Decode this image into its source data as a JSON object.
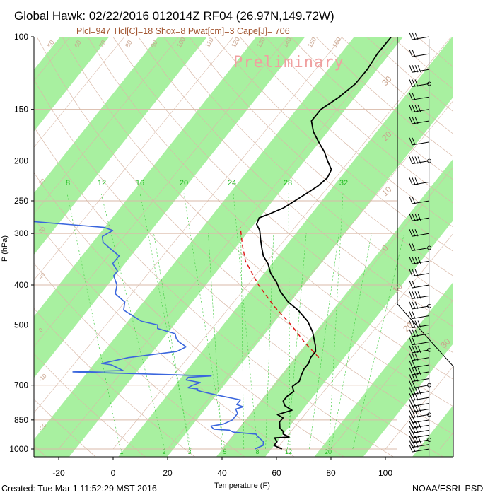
{
  "header": {
    "title": "Global Hawk: 02/22/2016 012014Z RF04 (26.97N,149.72W)",
    "subtitle": "Plcl=947 Tlcl[C]=18 Shox=8 Pwat[cm]=3 Cape[J]= 706"
  },
  "footer": {
    "created": "Created: Tue Mar  1 11:52:29 MST 2016",
    "credit": "NOAA/ESRL PSD"
  },
  "watermark": "Preliminary",
  "colors": {
    "band": "#a8f0a0",
    "temperature": "#000000",
    "dewpoint": "#3a66dd",
    "parcel": "#dd1111",
    "isotherm": "#d9b9a8",
    "dry_adiabat": "#d9b9a8",
    "mixing_ratio": "#44cc44",
    "wind": "#000000",
    "watermark": "#f0a0a0"
  },
  "chart_data": {
    "type": "skew-t",
    "xlabel": "Temperature (F)",
    "ylabel": "P (hPa)",
    "x_ticks": [
      -20,
      0,
      20,
      40,
      60,
      80,
      100
    ],
    "y_ticks": [
      100,
      150,
      200,
      250,
      300,
      400,
      500,
      700,
      850,
      1000
    ],
    "xlim_F": [
      -28,
      112
    ],
    "ylim_hPa": [
      1000,
      100
    ],
    "isotherm_labels_F": [
      "20",
      "10",
      "0",
      "-10",
      "-20",
      "-30"
    ],
    "dry_adiabat_labels": [
      "50",
      "60",
      "70",
      "80",
      "90",
      "100",
      "110",
      "120",
      "130",
      "140",
      "150",
      "160"
    ],
    "mixing_ratio_labels_top": [
      "8",
      "12",
      "16",
      "20",
      "24",
      "28",
      "32"
    ],
    "mixing_ratio_labels_bottom": [
      "1",
      "2",
      "3",
      "5",
      "8",
      "12",
      "20"
    ],
    "skewt_temperature_labels": [
      "30",
      "20",
      "10",
      "0",
      "10",
      "20",
      "30"
    ],
    "left_isotherm_labels": [
      "20",
      "30",
      "40",
      "0",
      "-10",
      "-20"
    ],
    "series": [
      {
        "name": "temperature",
        "points_F_hPa": [
          [
            62,
            1000
          ],
          [
            58,
            980
          ],
          [
            58,
            960
          ],
          [
            56,
            940
          ],
          [
            61,
            935
          ],
          [
            58,
            920
          ],
          [
            57,
            905
          ],
          [
            55,
            890
          ],
          [
            53,
            860
          ],
          [
            53,
            840
          ],
          [
            50,
            825
          ],
          [
            54,
            805
          ],
          [
            50,
            785
          ],
          [
            48,
            765
          ],
          [
            48,
            745
          ],
          [
            49,
            725
          ],
          [
            47,
            705
          ],
          [
            48,
            685
          ],
          [
            47,
            665
          ],
          [
            46,
            640
          ],
          [
            46,
            620
          ],
          [
            45,
            600
          ],
          [
            45,
            580
          ],
          [
            43,
            560
          ],
          [
            38,
            520
          ],
          [
            33,
            490
          ],
          [
            26,
            460
          ],
          [
            20,
            440
          ],
          [
            14,
            415
          ],
          [
            10,
            395
          ],
          [
            5,
            375
          ],
          [
            1,
            355
          ],
          [
            -3,
            340
          ],
          [
            -6,
            325
          ],
          [
            -9,
            310
          ],
          [
            -12,
            295
          ],
          [
            -15,
            285
          ],
          [
            -16,
            275
          ],
          [
            -13,
            268
          ],
          [
            -10,
            260
          ],
          [
            -8,
            250
          ],
          [
            -6,
            240
          ],
          [
            -4,
            230
          ],
          [
            -3,
            220
          ],
          [
            -4,
            210
          ],
          [
            -8,
            200
          ],
          [
            -12,
            190
          ],
          [
            -17,
            180
          ],
          [
            -22,
            170
          ],
          [
            -26,
            160
          ],
          [
            -26,
            150
          ],
          [
            -23,
            140
          ],
          [
            -21,
            130
          ],
          [
            -21,
            120
          ],
          [
            -22,
            110
          ],
          [
            -22,
            100
          ]
        ]
      },
      {
        "name": "dewpoint",
        "points_F_hPa": [
          [
            52,
            1000
          ],
          [
            54,
            980
          ],
          [
            53,
            960
          ],
          [
            49,
            930
          ],
          [
            48,
            920
          ],
          [
            39,
            910
          ],
          [
            37,
            900
          ],
          [
            31,
            895
          ],
          [
            29,
            880
          ],
          [
            33,
            870
          ],
          [
            35,
            850
          ],
          [
            35,
            820
          ],
          [
            33,
            800
          ],
          [
            35,
            790
          ],
          [
            32,
            780
          ],
          [
            32,
            760
          ],
          [
            22,
            740
          ],
          [
            15,
            725
          ],
          [
            13,
            720
          ],
          [
            13,
            715
          ],
          [
            9,
            710
          ],
          [
            10,
            700
          ],
          [
            12,
            690
          ],
          [
            6,
            680
          ],
          [
            6,
            670
          ],
          [
            14,
            665
          ],
          [
            -2,
            660
          ],
          [
            -38,
            650
          ],
          [
            -20,
            645
          ],
          [
            -26,
            625
          ],
          [
            -30,
            620
          ],
          [
            -22,
            600
          ],
          [
            -6,
            580
          ],
          [
            -4,
            565
          ],
          [
            -8,
            550
          ],
          [
            -10,
            540
          ],
          [
            -12,
            525
          ],
          [
            -20,
            510
          ],
          [
            -21,
            500
          ],
          [
            -28,
            490
          ],
          [
            -33,
            475
          ],
          [
            -38,
            460
          ],
          [
            -40,
            440
          ],
          [
            -46,
            420
          ],
          [
            -48,
            400
          ],
          [
            -52,
            380
          ],
          [
            -52,
            370
          ],
          [
            -56,
            355
          ],
          [
            -56,
            340
          ],
          [
            -62,
            325
          ],
          [
            -66,
            315
          ],
          [
            -68,
            305
          ],
          [
            -66,
            295
          ],
          [
            -70,
            290
          ],
          [
            -100,
            280
          ],
          [
            -110,
            270
          ]
        ]
      },
      {
        "name": "parcel",
        "points_F_hPa": [
          [
            48,
            600
          ],
          [
            38,
            550
          ],
          [
            28,
            500
          ],
          [
            16,
            450
          ],
          [
            4,
            400
          ],
          [
            -8,
            350
          ],
          [
            -14,
            320
          ],
          [
            -20,
            290
          ]
        ]
      }
    ],
    "wind_levels_hPa": [
      1000,
      975,
      950,
      925,
      900,
      875,
      850,
      825,
      800,
      775,
      750,
      725,
      700,
      675,
      650,
      625,
      600,
      575,
      550,
      525,
      500,
      475,
      450,
      425,
      400,
      375,
      350,
      325,
      300,
      275,
      250,
      225,
      200,
      180,
      160,
      150,
      140,
      130,
      120,
      110,
      100
    ]
  }
}
